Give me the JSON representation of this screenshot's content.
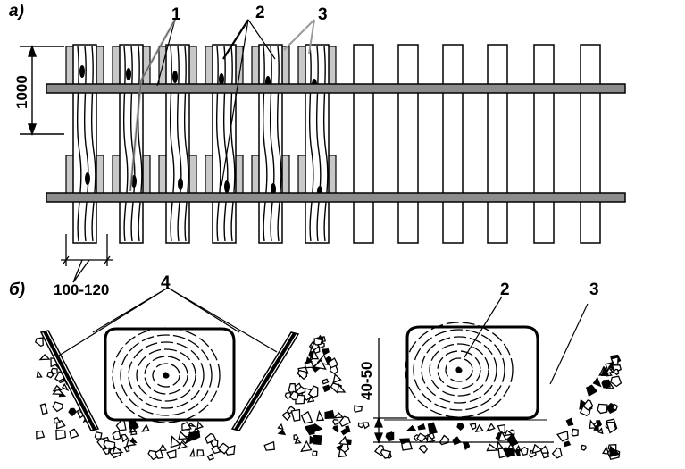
{
  "panels": {
    "top": "а)",
    "bottom": "б)"
  },
  "callouts": {
    "one": "1",
    "two": "2",
    "three": "3",
    "four": "4",
    "two_bottom": "2",
    "three_bottom": "3"
  },
  "dimensions": {
    "height": "1000",
    "width": "100-120",
    "depth": "40-50"
  },
  "colors": {
    "rail": "#8c8c8c",
    "wood_fill": "#c8c8c8",
    "ink": "#000000",
    "paper": "#ffffff"
  }
}
